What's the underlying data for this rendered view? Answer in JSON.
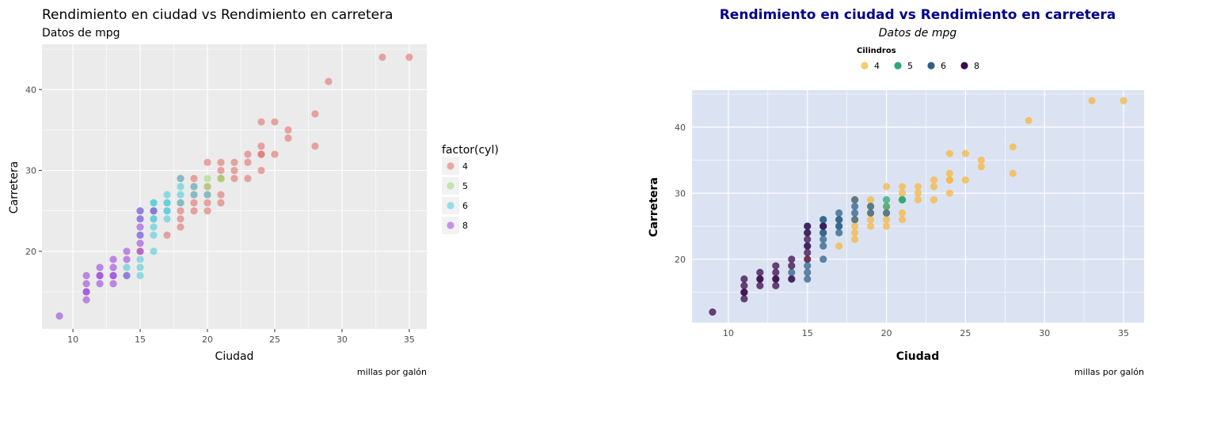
{
  "chart_data": [
    {
      "type": "scatter",
      "title": "Rendimiento en ciudad vs Rendimiento en carretera",
      "subtitle": "Datos de mpg",
      "xlabel": "Ciudad",
      "ylabel": "Carretera",
      "caption": "millas por galón",
      "xlim": [
        7.7,
        36.3
      ],
      "ylim": [
        10.4,
        45.6
      ],
      "xticks": [
        10,
        15,
        20,
        25,
        30,
        35
      ],
      "yticks": [
        20,
        30,
        40
      ],
      "grid": true,
      "legend": {
        "title": "factor(cyl)",
        "placement": "right"
      },
      "series": [
        {
          "name": "4",
          "color": "#e0706a",
          "points": [
            [
              18,
              29
            ],
            [
              21,
              29
            ],
            [
              20,
              31
            ],
            [
              21,
              30
            ],
            [
              18,
              26
            ],
            [
              18,
              25
            ],
            [
              19,
              27
            ],
            [
              21,
              29
            ],
            [
              21,
              31
            ],
            [
              20,
              28
            ],
            [
              20,
              27
            ],
            [
              21,
              26
            ],
            [
              19,
              26
            ],
            [
              24,
              32
            ],
            [
              25,
              32
            ],
            [
              23,
              29
            ],
            [
              24,
              32
            ],
            [
              28,
              37
            ],
            [
              28,
              33
            ],
            [
              24,
              36
            ],
            [
              26,
              35
            ],
            [
              24,
              30
            ],
            [
              29,
              41
            ],
            [
              33,
              44
            ],
            [
              35,
              44
            ],
            [
              26,
              34
            ],
            [
              25,
              36
            ],
            [
              24,
              33
            ],
            [
              23,
              32
            ],
            [
              23,
              31
            ],
            [
              22,
              29
            ],
            [
              22,
              31
            ],
            [
              22,
              30
            ],
            [
              19,
              29
            ],
            [
              19,
              28
            ],
            [
              21,
              27
            ],
            [
              20,
              25
            ],
            [
              18,
              24
            ],
            [
              18,
              23
            ],
            [
              20,
              26
            ],
            [
              19,
              25
            ],
            [
              15,
              20
            ],
            [
              17,
              22
            ]
          ]
        },
        {
          "name": "5",
          "color": "#a3d977",
          "points": [
            [
              20,
              28
            ],
            [
              20,
              29
            ],
            [
              21,
              29
            ],
            [
              21,
              29
            ]
          ]
        },
        {
          "name": "6",
          "color": "#4ccbd8",
          "points": [
            [
              16,
              26
            ],
            [
              16,
              26
            ],
            [
              17,
              24
            ],
            [
              18,
              26
            ],
            [
              18,
              28
            ],
            [
              17,
              26
            ],
            [
              15,
              25
            ],
            [
              16,
              25
            ],
            [
              15,
              24
            ],
            [
              16,
              24
            ],
            [
              17,
              25
            ],
            [
              18,
              27
            ],
            [
              19,
              27
            ],
            [
              16,
              22
            ],
            [
              15,
              19
            ],
            [
              16,
              20
            ],
            [
              14,
              17
            ],
            [
              15,
              17
            ],
            [
              14,
              18
            ],
            [
              15,
              18
            ],
            [
              16,
              23
            ],
            [
              17,
              27
            ],
            [
              15,
              22
            ],
            [
              16,
              24
            ],
            [
              17,
              25
            ],
            [
              18,
              29
            ],
            [
              19,
              28
            ],
            [
              20,
              27
            ],
            [
              16,
              25
            ],
            [
              17,
              26
            ]
          ]
        },
        {
          "name": "8",
          "color": "#9a45d8",
          "points": [
            [
              9,
              12
            ],
            [
              11,
              14
            ],
            [
              11,
              15
            ],
            [
              11,
              16
            ],
            [
              11,
              17
            ],
            [
              12,
              16
            ],
            [
              12,
              17
            ],
            [
              12,
              18
            ],
            [
              13,
              16
            ],
            [
              13,
              17
            ],
            [
              13,
              18
            ],
            [
              13,
              19
            ],
            [
              14,
              17
            ],
            [
              14,
              19
            ],
            [
              15,
              20
            ],
            [
              15,
              21
            ],
            [
              15,
              22
            ],
            [
              15,
              23
            ],
            [
              15,
              24
            ],
            [
              15,
              25
            ],
            [
              14,
              20
            ],
            [
              16,
              25
            ],
            [
              11,
              15
            ],
            [
              12,
              17
            ],
            [
              13,
              17
            ]
          ]
        }
      ]
    },
    {
      "type": "scatter",
      "title": "Rendimiento en ciudad vs Rendimiento en carretera",
      "subtitle": "Datos de mpg",
      "xlabel": "Ciudad",
      "ylabel": "Carretera",
      "caption": "millas por galón",
      "xlim": [
        7.7,
        36.3
      ],
      "ylim": [
        10.4,
        45.6
      ],
      "xticks": [
        10,
        15,
        20,
        25,
        30,
        35
      ],
      "yticks": [
        20,
        30,
        40
      ],
      "grid": true,
      "legend": {
        "title": "Cilindros",
        "placement": "top"
      },
      "colors": {
        "panel": "#dbe3f3",
        "title": "#00008b"
      },
      "series": [
        {
          "name": "4",
          "color": "#f5b841",
          "points": [
            [
              18,
              29
            ],
            [
              21,
              29
            ],
            [
              20,
              31
            ],
            [
              21,
              30
            ],
            [
              18,
              26
            ],
            [
              18,
              25
            ],
            [
              19,
              27
            ],
            [
              21,
              29
            ],
            [
              21,
              31
            ],
            [
              20,
              28
            ],
            [
              20,
              27
            ],
            [
              21,
              26
            ],
            [
              19,
              26
            ],
            [
              24,
              32
            ],
            [
              25,
              32
            ],
            [
              23,
              29
            ],
            [
              24,
              32
            ],
            [
              28,
              37
            ],
            [
              28,
              33
            ],
            [
              24,
              36
            ],
            [
              26,
              35
            ],
            [
              24,
              30
            ],
            [
              29,
              41
            ],
            [
              33,
              44
            ],
            [
              35,
              44
            ],
            [
              26,
              34
            ],
            [
              25,
              36
            ],
            [
              24,
              33
            ],
            [
              23,
              32
            ],
            [
              23,
              31
            ],
            [
              22,
              29
            ],
            [
              22,
              31
            ],
            [
              22,
              30
            ],
            [
              19,
              29
            ],
            [
              19,
              28
            ],
            [
              21,
              27
            ],
            [
              20,
              25
            ],
            [
              18,
              24
            ],
            [
              18,
              23
            ],
            [
              20,
              26
            ],
            [
              19,
              25
            ],
            [
              15,
              20
            ],
            [
              17,
              22
            ]
          ]
        },
        {
          "name": "5",
          "color": "#2aa876",
          "points": [
            [
              20,
              28
            ],
            [
              20,
              29
            ],
            [
              21,
              29
            ],
            [
              21,
              29
            ]
          ]
        },
        {
          "name": "6",
          "color": "#2c6089",
          "points": [
            [
              16,
              26
            ],
            [
              16,
              26
            ],
            [
              17,
              24
            ],
            [
              18,
              26
            ],
            [
              18,
              28
            ],
            [
              17,
              26
            ],
            [
              15,
              25
            ],
            [
              16,
              25
            ],
            [
              15,
              24
            ],
            [
              16,
              24
            ],
            [
              17,
              25
            ],
            [
              18,
              27
            ],
            [
              19,
              27
            ],
            [
              16,
              22
            ],
            [
              15,
              19
            ],
            [
              16,
              20
            ],
            [
              14,
              17
            ],
            [
              15,
              17
            ],
            [
              14,
              18
            ],
            [
              15,
              18
            ],
            [
              16,
              23
            ],
            [
              17,
              27
            ],
            [
              15,
              22
            ],
            [
              16,
              24
            ],
            [
              17,
              25
            ],
            [
              18,
              29
            ],
            [
              19,
              28
            ],
            [
              20,
              27
            ],
            [
              16,
              25
            ],
            [
              17,
              26
            ]
          ]
        },
        {
          "name": "8",
          "color": "#3b0a4a",
          "points": [
            [
              9,
              12
            ],
            [
              11,
              14
            ],
            [
              11,
              15
            ],
            [
              11,
              16
            ],
            [
              11,
              17
            ],
            [
              12,
              16
            ],
            [
              12,
              17
            ],
            [
              12,
              18
            ],
            [
              13,
              16
            ],
            [
              13,
              17
            ],
            [
              13,
              18
            ],
            [
              13,
              19
            ],
            [
              14,
              17
            ],
            [
              14,
              19
            ],
            [
              15,
              20
            ],
            [
              15,
              21
            ],
            [
              15,
              22
            ],
            [
              15,
              23
            ],
            [
              15,
              24
            ],
            [
              15,
              25
            ],
            [
              14,
              20
            ],
            [
              16,
              25
            ],
            [
              11,
              15
            ],
            [
              12,
              17
            ],
            [
              13,
              17
            ]
          ]
        }
      ]
    }
  ]
}
